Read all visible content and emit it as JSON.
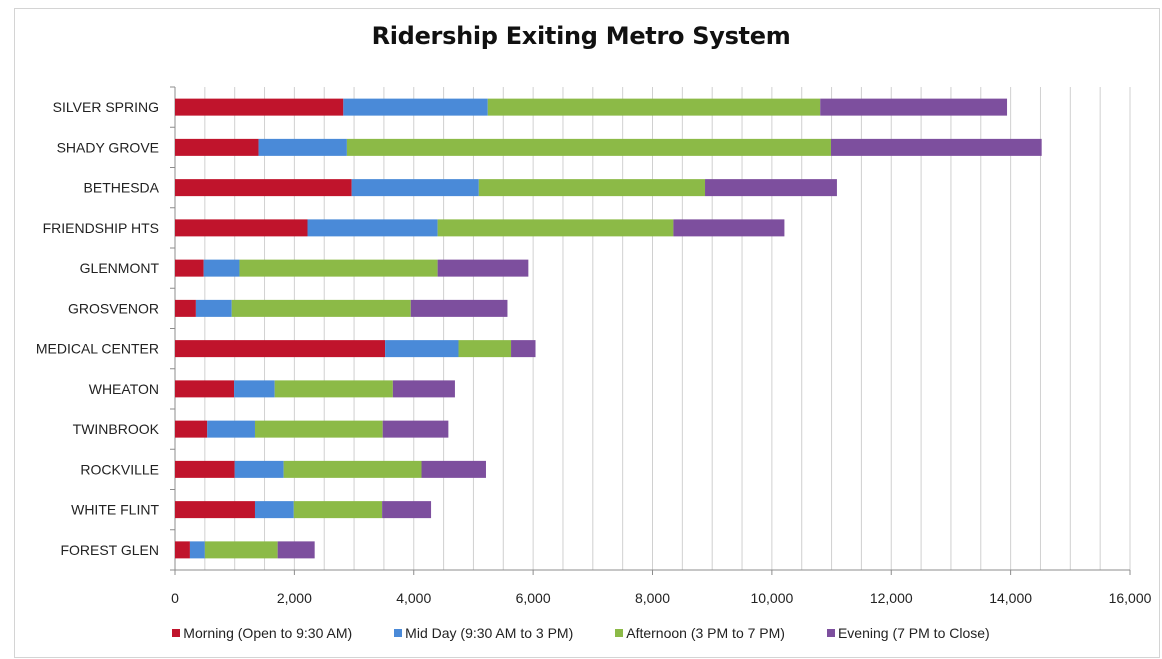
{
  "chart_data": {
    "type": "bar",
    "orientation": "horizontal",
    "stacked": true,
    "title": "Ridership Exiting Metro System",
    "xlabel": "",
    "ylabel": "",
    "xlim": [
      0,
      16000
    ],
    "x_ticks": [
      "0",
      "2,000",
      "4,000",
      "6,000",
      "8,000",
      "10,000",
      "12,000",
      "14,000",
      "16,000"
    ],
    "grid": "vertical",
    "legend_position": "bottom",
    "categories": [
      "SILVER SPRING",
      "SHADY GROVE",
      "BETHESDA",
      "FRIENDSHIP HTS",
      "GLENMONT",
      "GROSVENOR",
      "MEDICAL CENTER",
      "WHEATON",
      "TWINBROOK",
      "ROCKVILLE",
      "WHITE FLINT",
      "FOREST GLEN"
    ],
    "series": [
      {
        "name": "Morning (Open to 9:30 AM)",
        "color": "#c0142c",
        "values": [
          2820,
          1400,
          2960,
          2220,
          480,
          350,
          3520,
          990,
          540,
          1000,
          1340,
          250
        ]
      },
      {
        "name": "Mid Day (9:30 AM to 3 PM)",
        "color": "#4a8ad8",
        "values": [
          2420,
          1480,
          2130,
          2180,
          600,
          600,
          1230,
          680,
          800,
          820,
          650,
          250
        ]
      },
      {
        "name": "Afternoon (3 PM to 7 PM)",
        "color": "#8cba47",
        "values": [
          5570,
          8110,
          3790,
          3950,
          3320,
          3000,
          880,
          1980,
          2140,
          2310,
          1480,
          1220
        ]
      },
      {
        "name": "Evening (7 PM to Close)",
        "color": "#7d4f9e",
        "values": [
          3130,
          3530,
          2210,
          1860,
          1520,
          1620,
          410,
          1040,
          1100,
          1080,
          820,
          620
        ]
      }
    ]
  }
}
